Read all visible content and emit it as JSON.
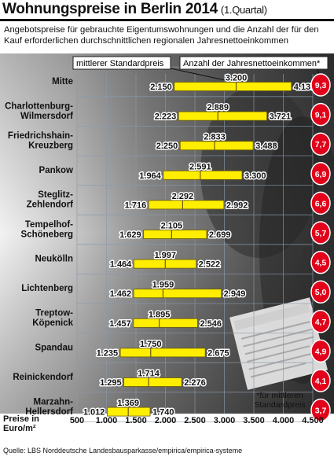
{
  "title": "Wohnungspreise in Berlin 2014",
  "title_note": "(1.Quartal)",
  "subtitle": "Angebotspreise für gebrauchte Eigentumswohnungen und die Anzahl der für den Kauf erforderlichen durchschnittlichen regionalen Jahresnettoeinkommen",
  "legend": {
    "price": "mittlerer Standardpreis",
    "income": "Anzahl der Jahresnettoeinkommen*"
  },
  "footnote": "*für mittleren Standardpreis",
  "x_axis_label": "Preise in Euro/m²",
  "source": "Quelle: LBS Norddeutsche Landesbausparkasse/empirica/empirica-systeme",
  "colors": {
    "bar": "#ffee00",
    "bar_border": "#6a5a00",
    "badge": "#e2001a",
    "background_photo": "#4a4a4a",
    "grid": "#8a9aaa"
  },
  "chart_data": {
    "type": "range-bar",
    "title": "Wohnungspreise in Berlin 2014",
    "xlabel": "Preise in Euro/m²",
    "xlim": [
      500,
      4500
    ],
    "x_ticks": [
      500,
      1000,
      1500,
      2000,
      2500,
      3000,
      3500,
      4000,
      4500
    ],
    "x_tick_labels": [
      "500",
      "1.000",
      "1.500",
      "2.000",
      "2.500",
      "3.000",
      "3.500",
      "4.000",
      "4.500"
    ],
    "grid": true,
    "rows": [
      {
        "district": [
          "Mitte"
        ],
        "min": 2150,
        "median": 3200,
        "max": 4137,
        "min_label": "2.150",
        "median_label": "3.200",
        "max_label": "4.137",
        "incomes": "9,3"
      },
      {
        "district": [
          "Charlottenburg-",
          "Wilmersdorf"
        ],
        "min": 2223,
        "median": 2889,
        "max": 3721,
        "min_label": "2.223",
        "median_label": "2.889",
        "max_label": "3.721",
        "incomes": "9,1"
      },
      {
        "district": [
          "Friedrichshain-",
          "Kreuzberg"
        ],
        "min": 2250,
        "median": 2833,
        "max": 3488,
        "min_label": "2.250",
        "median_label": "2.833",
        "max_label": "3.488",
        "incomes": "7,7"
      },
      {
        "district": [
          "Pankow"
        ],
        "min": 1964,
        "median": 2591,
        "max": 3300,
        "min_label": "1.964",
        "median_label": "2.591",
        "max_label": "3.300",
        "incomes": "6,9"
      },
      {
        "district": [
          "Steglitz-",
          "Zehlendorf"
        ],
        "min": 1716,
        "median": 2292,
        "max": 2992,
        "min_label": "1.716",
        "median_label": "2.292",
        "max_label": "2.992",
        "incomes": "6,6"
      },
      {
        "district": [
          "Tempelhof-",
          "Schöneberg"
        ],
        "min": 1629,
        "median": 2105,
        "max": 2699,
        "min_label": "1.629",
        "median_label": "2.105",
        "max_label": "2.699",
        "incomes": "5,7"
      },
      {
        "district": [
          "Neukölln"
        ],
        "min": 1464,
        "median": 1997,
        "max": 2522,
        "min_label": "1.464",
        "median_label": "1.997",
        "max_label": "2.522",
        "incomes": "4,5"
      },
      {
        "district": [
          "Lichtenberg"
        ],
        "min": 1462,
        "median": 1959,
        "max": 2949,
        "min_label": "1.462",
        "median_label": "1.959",
        "max_label": "2.949",
        "incomes": "5,0"
      },
      {
        "district": [
          "Treptow-",
          "Köpenick"
        ],
        "min": 1457,
        "median": 1895,
        "max": 2546,
        "min_label": "1.457",
        "median_label": "1.895",
        "max_label": "2.546",
        "incomes": "4,7"
      },
      {
        "district": [
          "Spandau"
        ],
        "min": 1235,
        "median": 1750,
        "max": 2675,
        "min_label": "1.235",
        "median_label": "1.750",
        "max_label": "2.675",
        "incomes": "4,9"
      },
      {
        "district": [
          "Reinickendorf"
        ],
        "min": 1295,
        "median": 1714,
        "max": 2276,
        "min_label": "1.295",
        "median_label": "1.714",
        "max_label": "2.276",
        "incomes": "4,1"
      },
      {
        "district": [
          "Marzahn-",
          "Hellersdorf"
        ],
        "min": 1012,
        "median": 1369,
        "max": 1740,
        "min_label": "1.012",
        "median_label": "1.369",
        "max_label": "1.740",
        "incomes": "3,7"
      }
    ]
  }
}
